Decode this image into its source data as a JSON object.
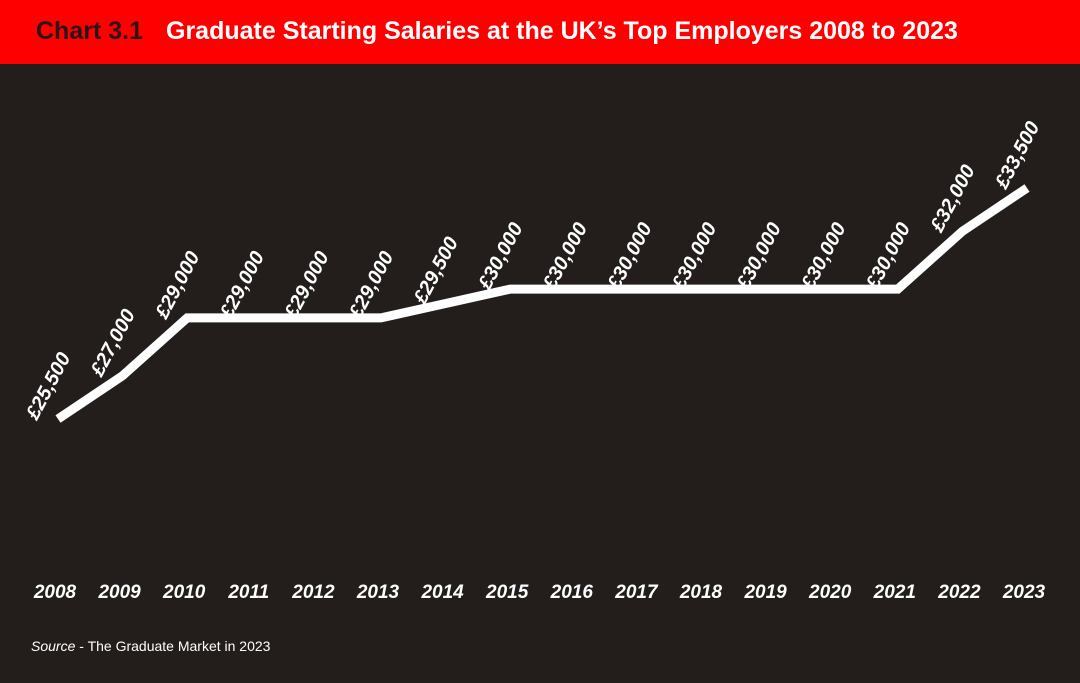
{
  "header": {
    "chart_number": "Chart 3.1",
    "title": "Graduate Starting Salaries at the UK’s Top Employers 2008 to 2023"
  },
  "source": {
    "label": "Source",
    "separator": " - ",
    "text": "The Graduate Market in 2023"
  },
  "colors": {
    "header_bg": "#fe0000",
    "plot_bg": "#231e1c",
    "line": "#ffffff",
    "text": "#ffffff"
  },
  "chart_data": {
    "type": "line",
    "title": "Graduate Starting Salaries at the UK’s Top Employers 2008 to 2023",
    "x": [
      "2008",
      "2009",
      "2010",
      "2011",
      "2012",
      "2013",
      "2014",
      "2015",
      "2016",
      "2017",
      "2018",
      "2019",
      "2020",
      "2021",
      "2022",
      "2023"
    ],
    "values": [
      25500,
      27000,
      29000,
      29000,
      29000,
      29000,
      29500,
      30000,
      30000,
      30000,
      30000,
      30000,
      30000,
      30000,
      32000,
      33500
    ],
    "value_labels": [
      "£25,500",
      "£27,000",
      "£29,000",
      "£29,000",
      "£29,000",
      "£29,000",
      "£29,500",
      "£30,000",
      "£30,000",
      "£30,000",
      "£30,000",
      "£30,000",
      "£30,000",
      "£30,000",
      "£32,000",
      "£33,500"
    ],
    "grid": false,
    "legend": "none"
  }
}
